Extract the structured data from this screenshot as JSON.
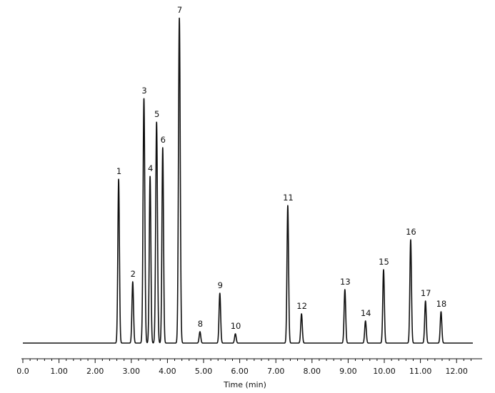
{
  "chart_data": {
    "type": "line",
    "title": "",
    "xlabel": "Time (min)",
    "ylabel": "",
    "xlim": [
      0.0,
      12.45
    ],
    "x_ticks": [
      "0.0",
      "1.00",
      "2.00",
      "3.00",
      "4.00",
      "5.00",
      "6.00",
      "7.00",
      "8.00",
      "9.00",
      "10.00",
      "11.00",
      "12.00"
    ],
    "grid": false,
    "legend": "none",
    "line_color": "#111111",
    "baseline_y": 0,
    "peaks": [
      {
        "label": "1",
        "time": 2.65,
        "height": 230
      },
      {
        "label": "2",
        "time": 3.04,
        "height": 86
      },
      {
        "label": "3",
        "time": 3.35,
        "height": 343
      },
      {
        "label": "4",
        "time": 3.52,
        "height": 234
      },
      {
        "label": "5",
        "time": 3.7,
        "height": 310
      },
      {
        "label": "6",
        "time": 3.87,
        "height": 274
      },
      {
        "label": "7",
        "time": 4.33,
        "height": 456
      },
      {
        "label": "8",
        "time": 4.9,
        "height": 16
      },
      {
        "label": "9",
        "time": 5.45,
        "height": 70
      },
      {
        "label": "10",
        "time": 5.88,
        "height": 13
      },
      {
        "label": "11",
        "time": 7.33,
        "height": 193
      },
      {
        "label": "12",
        "time": 7.71,
        "height": 41
      },
      {
        "label": "13",
        "time": 8.91,
        "height": 75
      },
      {
        "label": "14",
        "time": 9.48,
        "height": 31
      },
      {
        "label": "15",
        "time": 9.98,
        "height": 103
      },
      {
        "label": "16",
        "time": 10.73,
        "height": 145
      },
      {
        "label": "17",
        "time": 11.14,
        "height": 59
      },
      {
        "label": "18",
        "time": 11.57,
        "height": 44
      }
    ]
  }
}
